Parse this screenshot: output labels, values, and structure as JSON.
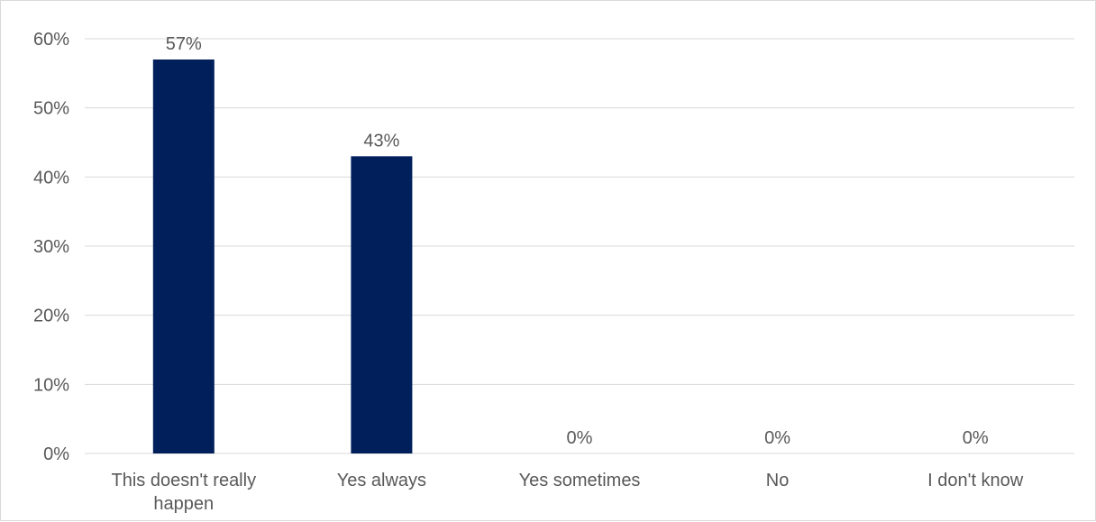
{
  "chart_data": {
    "type": "bar",
    "categories": [
      [
        "This doesn't really",
        "happen"
      ],
      [
        "Yes always"
      ],
      [
        "Yes sometimes"
      ],
      [
        "No"
      ],
      [
        "I don't know"
      ]
    ],
    "values": [
      57,
      43,
      0,
      0,
      0
    ],
    "data_labels": [
      "57%",
      "43%",
      "0%",
      "0%",
      "0%"
    ],
    "yticks": [
      "0%",
      "10%",
      "20%",
      "30%",
      "40%",
      "50%",
      "60%"
    ],
    "ylim": [
      0,
      60
    ],
    "unit": "%",
    "grid": true,
    "legend": "none",
    "title": "",
    "xlabel": "",
    "ylabel": "",
    "bar_color": "#001f5b",
    "grid_color": "#d9d9d9",
    "text_color": "#595959"
  }
}
